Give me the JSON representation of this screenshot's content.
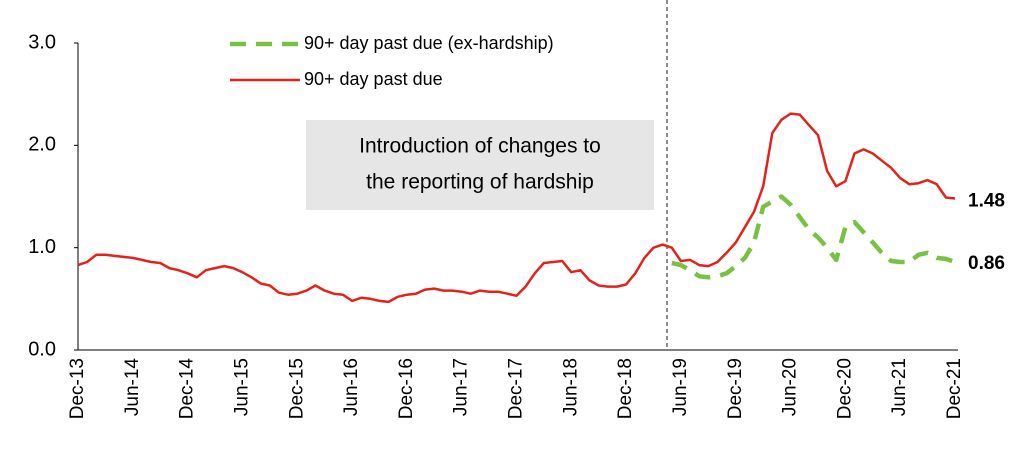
{
  "chart_data": {
    "type": "line",
    "categories": [
      "Dec-13",
      null,
      null,
      null,
      null,
      null,
      "Jun-14",
      null,
      null,
      null,
      null,
      null,
      "Dec-14",
      null,
      null,
      null,
      null,
      null,
      "Jun-15",
      null,
      null,
      null,
      null,
      null,
      "Dec-15",
      null,
      null,
      null,
      null,
      null,
      "Jun-16",
      null,
      null,
      null,
      null,
      null,
      "Dec-16",
      null,
      null,
      null,
      null,
      null,
      "Jun-17",
      null,
      null,
      null,
      null,
      null,
      "Dec-17",
      null,
      null,
      null,
      null,
      null,
      "Jun-18",
      null,
      null,
      null,
      null,
      null,
      "Dec-18",
      null,
      null,
      null,
      null,
      null,
      "Jun-19",
      null,
      null,
      null,
      null,
      null,
      "Dec-19",
      null,
      null,
      null,
      null,
      null,
      "Jun-20",
      null,
      null,
      null,
      null,
      null,
      "Dec-20",
      null,
      null,
      null,
      null,
      null,
      "Jun-21",
      null,
      null,
      null,
      null,
      null,
      "Dec-21"
    ],
    "series": [
      {
        "name": "90+ day past due (ex-hardship)",
        "color": "#7ac143",
        "linestyle": "dashed",
        "values": [
          null,
          null,
          null,
          null,
          null,
          null,
          null,
          null,
          null,
          null,
          null,
          null,
          null,
          null,
          null,
          null,
          null,
          null,
          null,
          null,
          null,
          null,
          null,
          null,
          null,
          null,
          null,
          null,
          null,
          null,
          null,
          null,
          null,
          null,
          null,
          null,
          null,
          null,
          null,
          null,
          null,
          null,
          null,
          null,
          null,
          null,
          null,
          null,
          null,
          null,
          null,
          null,
          null,
          null,
          null,
          null,
          null,
          null,
          null,
          null,
          null,
          null,
          null,
          null,
          null,
          0.85,
          0.83,
          0.78,
          0.72,
          0.71,
          0.72,
          0.75,
          0.82,
          0.9,
          1.05,
          1.4,
          1.45,
          1.5,
          1.42,
          1.3,
          1.18,
          1.1,
          1.0,
          0.88,
          1.2,
          1.25,
          1.15,
          1.05,
          0.95,
          0.87,
          0.86,
          0.86,
          0.93,
          0.95,
          0.9,
          0.89,
          0.86
        ]
      },
      {
        "name": "90+ day past due",
        "color": "#e3231b",
        "linestyle": "solid",
        "values": [
          0.83,
          0.86,
          0.93,
          0.93,
          0.92,
          0.91,
          0.9,
          0.88,
          0.86,
          0.85,
          0.8,
          0.78,
          0.75,
          0.71,
          0.78,
          0.8,
          0.82,
          0.8,
          0.76,
          0.71,
          0.65,
          0.63,
          0.56,
          0.54,
          0.55,
          0.58,
          0.63,
          0.58,
          0.55,
          0.54,
          0.48,
          0.51,
          0.5,
          0.48,
          0.47,
          0.52,
          0.54,
          0.55,
          0.59,
          0.6,
          0.58,
          0.58,
          0.57,
          0.55,
          0.58,
          0.57,
          0.57,
          0.55,
          0.53,
          0.62,
          0.75,
          0.85,
          0.86,
          0.87,
          0.76,
          0.78,
          0.68,
          0.63,
          0.62,
          0.62,
          0.64,
          0.75,
          0.9,
          1.0,
          1.03,
          1.0,
          0.87,
          0.88,
          0.83,
          0.82,
          0.86,
          0.95,
          1.05,
          1.2,
          1.35,
          1.6,
          2.12,
          2.25,
          2.31,
          2.3,
          2.2,
          2.1,
          1.75,
          1.6,
          1.65,
          1.92,
          1.96,
          1.92,
          1.85,
          1.78,
          1.68,
          1.62,
          1.63,
          1.66,
          1.62,
          1.49,
          1.48
        ]
      }
    ],
    "ylim": [
      0,
      3
    ],
    "yticks": [
      {
        "value": 0,
        "label": "0.0"
      },
      {
        "value": 1,
        "label": "1.0"
      },
      {
        "value": 2,
        "label": "2.0"
      },
      {
        "value": 3,
        "label": "3.0"
      }
    ],
    "grid": false,
    "annotation": [
      "Introduction of changes to",
      "the reporting of hardship"
    ]
  }
}
